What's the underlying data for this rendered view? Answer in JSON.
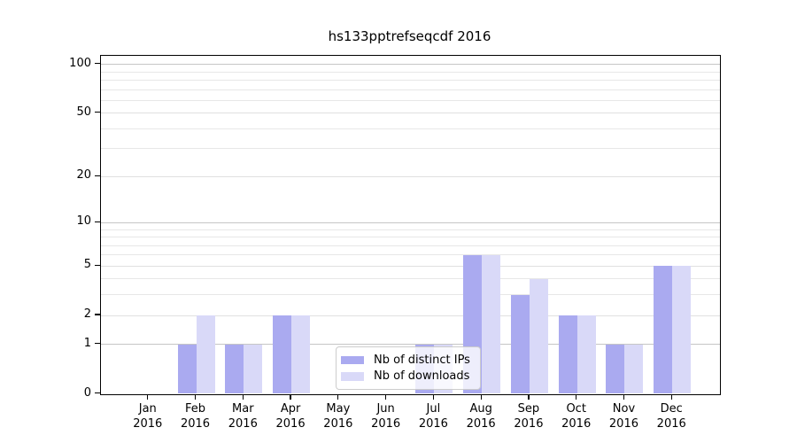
{
  "chart_data": {
    "type": "bar",
    "title": "hs133pptrefseqcdf 2016",
    "categories": [
      "Jan 2016",
      "Feb 2016",
      "Mar 2016",
      "Apr 2016",
      "May 2016",
      "Jun 2016",
      "Jul 2016",
      "Aug 2016",
      "Sep 2016",
      "Oct 2016",
      "Nov 2016",
      "Dec 2016"
    ],
    "series": [
      {
        "name": "Nb of distinct IPs",
        "color": "#aaaaf0",
        "values": [
          0,
          1,
          1,
          2,
          0,
          0,
          1,
          6,
          3,
          2,
          1,
          5
        ]
      },
      {
        "name": "Nb of downloads",
        "color": "#d9d9f8",
        "values": [
          0,
          2,
          1,
          2,
          0,
          0,
          1,
          6,
          4,
          2,
          1,
          5
        ]
      }
    ],
    "xlabel": "",
    "ylabel": "",
    "yscale": "log1p",
    "ylim": [
      0,
      112
    ],
    "yticks": [
      0,
      1,
      2,
      5,
      10,
      20,
      50,
      100
    ],
    "yticks_decade": [
      1,
      10,
      100
    ],
    "yticks_minor": [
      3,
      4,
      6,
      7,
      8,
      9,
      30,
      40,
      60,
      70,
      80,
      90
    ],
    "grid": true,
    "legend_position": "lower center"
  },
  "style": {
    "grid_decade_color": "#c6c6c6",
    "grid_major_color": "#e0e0e0",
    "grid_minor_color": "#e7e7e7",
    "axis_color": "#000000",
    "background_color": "#ffffff"
  }
}
